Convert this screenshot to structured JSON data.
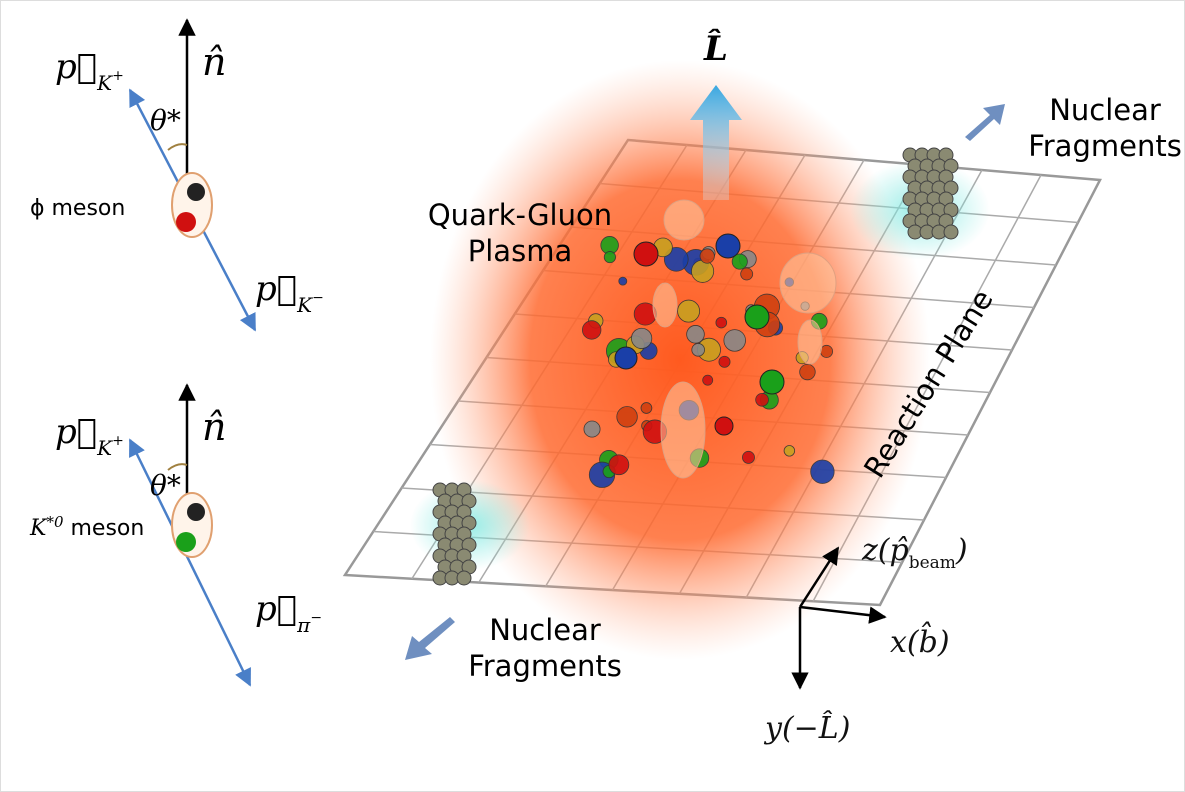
{
  "plasma": {
    "angular_momentum": "L̂",
    "label": [
      "Quark-Gluon",
      "Plasma"
    ],
    "plane_label": "Reaction Plane"
  },
  "fragments": [
    {
      "lines": [
        "Nuclear",
        "Fragments"
      ]
    },
    {
      "lines": [
        "Nuclear",
        "Fragments"
      ]
    }
  ],
  "axes": {
    "z": {
      "label": "z(p̂",
      "subscript": "beam",
      "close": ")"
    },
    "x": {
      "label": "x(b̂)"
    },
    "y": {
      "label": "y(−L̂)"
    }
  },
  "mesons": [
    {
      "normal": "n̂",
      "angle": "θ*",
      "name": "ϕ meson",
      "upper": {
        "p": "p⃗",
        "sub": "K",
        "sup": "+"
      },
      "lower": {
        "p": "p⃗",
        "sub": "K",
        "sup": "−"
      }
    },
    {
      "normal": "n̂",
      "angle": "θ*",
      "name_base": "K",
      "name_sup": "*0",
      "name_rest": " meson",
      "upper": {
        "p": "p⃗",
        "sub": "K",
        "sup": "+"
      },
      "lower": {
        "p": "p⃗",
        "sub": "π",
        "sup": "−"
      }
    }
  ]
}
